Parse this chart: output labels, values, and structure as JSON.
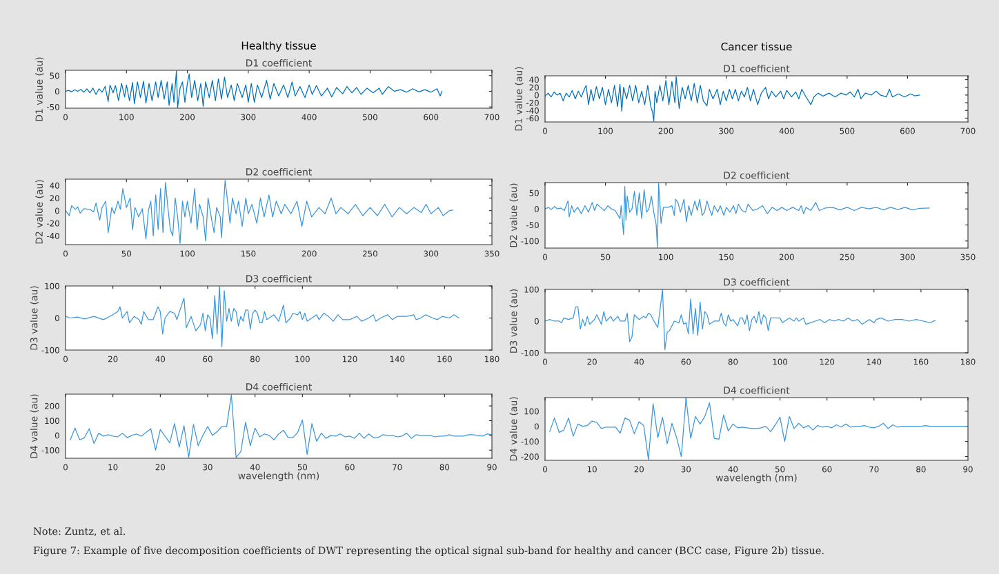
{
  "chart_data": [
    {
      "type": "line",
      "title": "Healthy tissue",
      "subtitle": "D1 coefficient",
      "ylabel": "D1 value (au)",
      "xlim": [
        0,
        700
      ],
      "xticks": [
        0,
        100,
        200,
        300,
        400,
        500,
        600,
        700
      ],
      "ylim": [
        -54,
        67
      ],
      "yticks": [
        -50,
        0,
        50
      ],
      "grid": false,
      "series": [
        {
          "color": "#0072bd",
          "x": [
            0,
            5,
            10,
            15,
            20,
            25,
            30,
            35,
            40,
            45,
            50,
            55,
            60,
            65,
            70,
            73,
            78,
            82,
            87,
            92,
            97,
            100,
            105,
            110,
            113,
            118,
            123,
            128,
            132,
            137,
            142,
            148,
            152,
            157,
            162,
            167,
            170,
            175,
            178,
            182,
            184,
            188,
            192,
            196,
            200,
            203,
            207,
            212,
            217,
            222,
            226,
            230,
            236,
            241,
            246,
            251,
            256,
            261,
            266,
            272,
            277,
            282,
            290,
            296,
            300,
            305,
            310,
            315,
            322,
            330,
            336,
            342,
            350,
            358,
            365,
            372,
            377,
            385,
            393,
            400,
            405,
            412,
            420,
            430,
            437,
            445,
            455,
            462,
            470,
            478,
            485,
            495,
            505,
            515,
            520,
            530,
            540,
            550,
            560,
            570,
            580,
            590,
            600,
            610,
            615,
            618
          ],
          "values": [
            0,
            3,
            -2,
            5,
            0,
            6,
            -3,
            8,
            -5,
            10,
            -10,
            8,
            -3,
            15,
            -33,
            20,
            -5,
            18,
            -30,
            25,
            -18,
            20,
            -30,
            28,
            -40,
            30,
            -20,
            32,
            -38,
            25,
            -30,
            30,
            -20,
            35,
            -25,
            30,
            -45,
            25,
            -35,
            65,
            -52,
            10,
            30,
            -35,
            25,
            55,
            -20,
            35,
            -30,
            25,
            -48,
            30,
            -20,
            35,
            -30,
            40,
            -25,
            45,
            -20,
            20,
            -30,
            25,
            -20,
            20,
            -35,
            25,
            -35,
            20,
            -20,
            35,
            -25,
            25,
            -15,
            20,
            -20,
            30,
            -15,
            15,
            -20,
            20,
            -10,
            18,
            -15,
            10,
            -18,
            12,
            -8,
            15,
            -5,
            12,
            -10,
            10,
            -5,
            10,
            -10,
            15,
            0,
            5,
            -3,
            8,
            -2,
            5,
            -3,
            8,
            -15,
            0
          ]
        }
      ]
    },
    {
      "type": "line",
      "title": "Cancer tissue",
      "subtitle": "D1 coefficient",
      "ylabel": "D1 value (au)",
      "xlim": [
        0,
        700
      ],
      "xticks": [
        0,
        100,
        200,
        300,
        400,
        500,
        600,
        700
      ],
      "ylim": [
        -70,
        50
      ],
      "yticks": [
        -60,
        -40,
        -20,
        0,
        20,
        40
      ],
      "grid": false,
      "series": [
        {
          "color": "#0072bd",
          "x": [
            0,
            5,
            10,
            15,
            20,
            25,
            30,
            35,
            40,
            45,
            50,
            55,
            60,
            65,
            68,
            72,
            76,
            80,
            85,
            90,
            95,
            100,
            105,
            110,
            115,
            120,
            124,
            127,
            130,
            135,
            140,
            145,
            150,
            155,
            160,
            165,
            170,
            175,
            178,
            180,
            182,
            185,
            190,
            195,
            200,
            205,
            210,
            215,
            217,
            220,
            222,
            227,
            232,
            237,
            242,
            247,
            252,
            257,
            262,
            268,
            272,
            278,
            285,
            290,
            295,
            300,
            305,
            310,
            315,
            320,
            325,
            330,
            335,
            340,
            345,
            352,
            358,
            365,
            370,
            375,
            382,
            390,
            395,
            400,
            408,
            415,
            420,
            425,
            432,
            440,
            445,
            452,
            460,
            470,
            480,
            490,
            498,
            505,
            512,
            518,
            523,
            530,
            540,
            548,
            555,
            565,
            570,
            575,
            585,
            595,
            605,
            612,
            620
          ],
          "values": [
            -3,
            5,
            -5,
            8,
            0,
            5,
            -15,
            5,
            -5,
            12,
            -10,
            10,
            -5,
            15,
            25,
            -25,
            15,
            -15,
            22,
            -10,
            20,
            -25,
            15,
            -20,
            25,
            -30,
            28,
            -42,
            20,
            -10,
            25,
            -15,
            25,
            -20,
            10,
            -25,
            25,
            -30,
            -45,
            -68,
            10,
            -20,
            25,
            -15,
            38,
            -25,
            35,
            -20,
            48,
            0,
            -35,
            20,
            -10,
            25,
            -15,
            30,
            -20,
            25,
            -15,
            -28,
            15,
            -10,
            15,
            -25,
            10,
            -15,
            15,
            -10,
            15,
            -15,
            10,
            -5,
            20,
            -15,
            15,
            -25,
            5,
            20,
            -10,
            10,
            -5,
            10,
            -10,
            12,
            -5,
            8,
            -10,
            15,
            -5,
            -25,
            -5,
            5,
            -3,
            5,
            -5,
            5,
            0,
            8,
            -5,
            15,
            -10,
            5,
            0,
            10,
            0,
            -5,
            15,
            -5,
            3,
            -5,
            3,
            -2,
            0
          ]
        }
      ]
    },
    {
      "type": "line",
      "title": "D2 coefficient",
      "ylabel": "D2 value (au)",
      "xlim": [
        0,
        350
      ],
      "xticks": [
        0,
        50,
        100,
        150,
        200,
        250,
        300,
        350
      ],
      "ylim": [
        -54,
        50
      ],
      "yticks": [
        -40,
        -20,
        0,
        20,
        40
      ],
      "grid": false,
      "series": [
        {
          "color": "#3a96dd",
          "x": [
            0,
            3,
            5,
            8,
            10,
            12,
            15,
            20,
            23,
            25,
            28,
            30,
            33,
            35,
            38,
            40,
            43,
            45,
            47,
            50,
            53,
            55,
            57,
            60,
            63,
            66,
            68,
            70,
            72,
            74,
            76,
            78,
            80,
            82,
            84,
            86,
            88,
            90,
            92,
            94,
            96,
            98,
            100,
            103,
            106,
            108,
            110,
            113,
            115,
            117,
            120,
            122,
            124,
            127,
            128,
            131,
            133,
            135,
            137,
            140,
            142,
            145,
            148,
            150,
            153,
            157,
            160,
            163,
            167,
            170,
            173,
            177,
            180,
            185,
            190,
            194,
            198,
            202,
            208,
            213,
            218,
            222,
            226,
            232,
            238,
            244,
            250,
            256,
            262,
            268,
            274,
            280,
            286,
            292,
            296,
            300,
            306,
            310,
            315,
            318
          ],
          "values": [
            0,
            -8,
            8,
            2,
            6,
            -4,
            3,
            2,
            -2,
            12,
            -15,
            5,
            15,
            -35,
            5,
            -5,
            15,
            2,
            35,
            5,
            20,
            -30,
            5,
            -10,
            3,
            -45,
            0,
            15,
            -40,
            25,
            -30,
            35,
            -35,
            45,
            5,
            -30,
            -40,
            20,
            -10,
            -52,
            15,
            -10,
            15,
            -20,
            35,
            -30,
            10,
            -10,
            -48,
            20,
            -15,
            -35,
            5,
            -10,
            -43,
            48,
            15,
            -20,
            20,
            -5,
            15,
            -25,
            20,
            -5,
            10,
            -20,
            20,
            -10,
            25,
            -10,
            15,
            -5,
            10,
            -5,
            15,
            -25,
            15,
            -10,
            5,
            -5,
            20,
            -5,
            5,
            -5,
            10,
            -8,
            5,
            -8,
            10,
            -10,
            5,
            -5,
            5,
            -3,
            10,
            -5,
            5,
            -8,
            0,
            1
          ]
        }
      ]
    },
    {
      "type": "line",
      "title": "D2 coefficient",
      "ylabel": "D2 value (au)",
      "xlim": [
        0,
        350
      ],
      "xticks": [
        0,
        50,
        100,
        150,
        200,
        250,
        300,
        350
      ],
      "ylim": [
        -122,
        82
      ],
      "yticks": [
        -100,
        -50,
        0,
        50
      ],
      "grid": false,
      "series": [
        {
          "color": "#3a96dd",
          "x": [
            0,
            3,
            5,
            8,
            10,
            13,
            16,
            19,
            20,
            22,
            24,
            27,
            30,
            33,
            36,
            39,
            41,
            43,
            46,
            49,
            52,
            55,
            58,
            62,
            63,
            65,
            66,
            67,
            68,
            70,
            72,
            74,
            76,
            78,
            80,
            82,
            84,
            86,
            88,
            90,
            92,
            93,
            94,
            95,
            96,
            98,
            102,
            105,
            107,
            108,
            110,
            112,
            115,
            117,
            119,
            121,
            124,
            126,
            128,
            130,
            132,
            134,
            136,
            138,
            140,
            143,
            145,
            148,
            150,
            153,
            156,
            158,
            160,
            163,
            166,
            168,
            172,
            176,
            180,
            184,
            188,
            192,
            196,
            200,
            205,
            210,
            212,
            214,
            216,
            220,
            224,
            227,
            232,
            238,
            244,
            250,
            256,
            262,
            268,
            274,
            280,
            286,
            292,
            298,
            304,
            310,
            318
          ],
          "values": [
            0,
            5,
            -2,
            8,
            0,
            3,
            -5,
            25,
            -25,
            10,
            -10,
            5,
            -15,
            10,
            -10,
            20,
            -5,
            15,
            5,
            -5,
            10,
            0,
            -5,
            -30,
            10,
            -80,
            70,
            -35,
            40,
            -10,
            0,
            55,
            -20,
            50,
            -30,
            60,
            -10,
            0,
            40,
            -10,
            -50,
            -120,
            80,
            20,
            -45,
            5,
            5,
            10,
            -20,
            30,
            20,
            -10,
            30,
            -40,
            10,
            -20,
            25,
            -5,
            30,
            -20,
            -10,
            25,
            0,
            -20,
            10,
            -10,
            10,
            -20,
            5,
            -10,
            10,
            -15,
            15,
            -5,
            -10,
            15,
            -5,
            0,
            10,
            -15,
            5,
            -5,
            5,
            -5,
            5,
            -5,
            10,
            -15,
            5,
            -5,
            20,
            -5,
            3,
            5,
            -3,
            5,
            -5,
            5,
            0,
            5,
            -3,
            5,
            -2,
            5,
            -3,
            2,
            3
          ]
        }
      ]
    },
    {
      "type": "line",
      "title": "D3 coefficient",
      "ylabel": "D3 value (au)",
      "xlim": [
        0,
        180
      ],
      "xticks": [
        0,
        20,
        40,
        60,
        80,
        100,
        120,
        140,
        160,
        180
      ],
      "ylim": [
        -100,
        100
      ],
      "yticks": [
        -100,
        0,
        100
      ],
      "grid": false,
      "series": [
        {
          "color": "#3a96dd",
          "x": [
            0,
            2,
            5,
            8,
            12,
            16,
            18,
            21,
            22,
            23,
            24,
            26,
            27,
            29,
            31,
            32,
            33,
            35,
            37,
            39,
            40,
            41,
            42,
            44,
            46,
            47,
            49,
            50,
            51,
            53,
            55,
            57,
            58,
            59,
            60,
            61,
            62,
            63,
            64,
            65,
            66,
            67,
            68,
            69,
            70,
            71,
            72,
            73,
            74,
            75,
            76,
            77,
            78,
            79,
            80,
            81,
            82,
            83,
            84,
            85,
            88,
            90,
            92,
            93,
            95,
            96,
            98,
            99,
            100,
            101,
            102,
            104,
            106,
            107,
            109,
            111,
            113,
            115,
            117,
            120,
            123,
            125,
            128,
            130,
            131,
            133,
            136,
            138,
            140,
            144,
            147,
            148,
            150,
            152,
            155,
            157,
            159,
            162,
            164,
            166
          ],
          "values": [
            5,
            0,
            3,
            -3,
            5,
            -5,
            2,
            15,
            20,
            35,
            0,
            20,
            -15,
            5,
            -5,
            -20,
            20,
            -5,
            -5,
            35,
            20,
            -50,
            0,
            20,
            15,
            -5,
            40,
            62,
            -30,
            5,
            -40,
            -20,
            15,
            -40,
            10,
            0,
            -65,
            70,
            -50,
            100,
            -90,
            85,
            -10,
            30,
            -10,
            30,
            20,
            -25,
            5,
            -10,
            25,
            25,
            -35,
            15,
            25,
            15,
            -15,
            -15,
            20,
            -5,
            10,
            -10,
            40,
            -15,
            0,
            15,
            10,
            20,
            -5,
            15,
            -10,
            0,
            10,
            -5,
            15,
            5,
            -10,
            10,
            -5,
            -5,
            5,
            -10,
            0,
            10,
            -10,
            0,
            10,
            -5,
            5,
            5,
            10,
            -5,
            0,
            10,
            0,
            -5,
            5,
            0,
            10,
            0
          ]
        }
      ]
    },
    {
      "type": "line",
      "title": "D3 coefficient",
      "ylabel": "D3 value (au)",
      "xlim": [
        0,
        180
      ],
      "xticks": [
        0,
        20,
        40,
        60,
        80,
        100,
        120,
        140,
        160,
        180
      ],
      "ylim": [
        -100,
        100
      ],
      "yticks": [
        -100,
        0,
        100
      ],
      "grid": false,
      "series": [
        {
          "color": "#3a96dd",
          "x": [
            0,
            2,
            4,
            6,
            7,
            8,
            10,
            12,
            13,
            14,
            15,
            16,
            17,
            18,
            19,
            21,
            22,
            24,
            25,
            26,
            28,
            29,
            31,
            32,
            34,
            35,
            36,
            37,
            38,
            40,
            42,
            43,
            44,
            45,
            46,
            48,
            50,
            51,
            52,
            53,
            55,
            57,
            58,
            59,
            60,
            61,
            62,
            63,
            64,
            65,
            66,
            67,
            68,
            69,
            70,
            72,
            74,
            75,
            76,
            77,
            78,
            79,
            80,
            82,
            83,
            84,
            85,
            86,
            87,
            88,
            89,
            90,
            91,
            92,
            93,
            94,
            95,
            96,
            98,
            100,
            101,
            104,
            106,
            107,
            108,
            110,
            111,
            113,
            115,
            117,
            119,
            121,
            123,
            125,
            127,
            129,
            131,
            133,
            135,
            137,
            138,
            140,
            141,
            143,
            146,
            149,
            152,
            155,
            158,
            161,
            164,
            166
          ],
          "values": [
            0,
            5,
            0,
            0,
            -5,
            10,
            5,
            10,
            45,
            45,
            -25,
            5,
            -15,
            15,
            -10,
            5,
            20,
            -10,
            30,
            0,
            15,
            0,
            15,
            0,
            0,
            25,
            -65,
            -50,
            20,
            5,
            15,
            10,
            25,
            20,
            5,
            -20,
            100,
            -90,
            -35,
            -30,
            0,
            -5,
            20,
            -10,
            -5,
            -40,
            70,
            -40,
            40,
            -45,
            60,
            -25,
            30,
            20,
            -10,
            0,
            0,
            25,
            -5,
            -15,
            20,
            0,
            5,
            -15,
            10,
            10,
            -10,
            20,
            -30,
            5,
            15,
            -5,
            30,
            -10,
            20,
            10,
            -30,
            10,
            10,
            10,
            -5,
            10,
            0,
            10,
            0,
            10,
            -10,
            -5,
            0,
            5,
            -5,
            5,
            0,
            5,
            0,
            10,
            0,
            5,
            -10,
            0,
            5,
            -5,
            5,
            10,
            0,
            5,
            5,
            0,
            5,
            0,
            -5,
            2
          ]
        }
      ]
    },
    {
      "type": "line",
      "title": "D4 coefficient",
      "xlabel": "wavelength (nm)",
      "ylabel": "D4 value (au)",
      "xlim": [
        0,
        90
      ],
      "xticks": [
        0,
        10,
        20,
        30,
        40,
        50,
        60,
        70,
        80,
        90
      ],
      "ylim": [
        -155,
        280
      ],
      "yticks": [
        -100,
        0,
        100,
        200
      ],
      "grid": false,
      "series": [
        {
          "color": "#3a96dd",
          "x": [
            1,
            2,
            3,
            4,
            5,
            6,
            7,
            8,
            9,
            10,
            11,
            12,
            13,
            14,
            15,
            16,
            17,
            18,
            19,
            20,
            21,
            22,
            23,
            24,
            25,
            26,
            27,
            28,
            29,
            30,
            31,
            32,
            33,
            34,
            35,
            36,
            37,
            38,
            39,
            40,
            41,
            42,
            43,
            44,
            45,
            46,
            47,
            48,
            49,
            50,
            51,
            52,
            53,
            54,
            55,
            56,
            57,
            58,
            59,
            60,
            61,
            62,
            63,
            64,
            65,
            66,
            67,
            68,
            69,
            70,
            71,
            72,
            73,
            74,
            75,
            76,
            77,
            78,
            79,
            80,
            81,
            82,
            83,
            84,
            85,
            86,
            87,
            88,
            89,
            90
          ],
          "values": [
            -30,
            50,
            -30,
            -15,
            45,
            -55,
            15,
            -5,
            5,
            -5,
            -10,
            15,
            -15,
            0,
            10,
            -5,
            20,
            45,
            -100,
            40,
            -5,
            -50,
            80,
            -80,
            65,
            -150,
            75,
            -70,
            0,
            60,
            0,
            25,
            60,
            60,
            275,
            -150,
            -110,
            90,
            -70,
            50,
            -10,
            10,
            0,
            -30,
            10,
            35,
            -15,
            -15,
            20,
            105,
            -130,
            80,
            -40,
            15,
            -20,
            0,
            -5,
            10,
            -10,
            -5,
            -20,
            15,
            -20,
            10,
            -15,
            -15,
            5,
            0,
            0,
            -10,
            -5,
            15,
            -20,
            5,
            0,
            0,
            0,
            -10,
            -5,
            -5,
            5,
            -5,
            -5,
            -5,
            5,
            5,
            0,
            -5,
            10,
            5
          ]
        }
      ]
    },
    {
      "type": "line",
      "title": "D4 coefficient",
      "xlabel": "wavelength (nm)",
      "ylabel": "D4 value (au)",
      "xlim": [
        0,
        90
      ],
      "xticks": [
        0,
        10,
        20,
        30,
        40,
        50,
        60,
        70,
        80,
        90
      ],
      "ylim": [
        -225,
        190
      ],
      "yticks": [
        -200,
        -100,
        0,
        100
      ],
      "grid": false,
      "annotations": [
        "Note: Zuntz, et al.",
        "Figure 7: Example of five decomposition coefficients of DWT representing the optical signal sub-band for healthy and cancer (BCC case, Figure 2b) tissue."
      ],
      "series": [
        {
          "color": "#3a96dd",
          "x": [
            1,
            2,
            3,
            4,
            5,
            6,
            7,
            8,
            9,
            10,
            11,
            12,
            13,
            14,
            15,
            16,
            17,
            18,
            19,
            20,
            21,
            22,
            23,
            24,
            25,
            26,
            27,
            28,
            29,
            30,
            31,
            32,
            33,
            34,
            35,
            36,
            37,
            38,
            39,
            40,
            41,
            42,
            43,
            44,
            45,
            46,
            47,
            48,
            49,
            50,
            51,
            52,
            53,
            54,
            55,
            56,
            57,
            58,
            59,
            60,
            61,
            62,
            63,
            64,
            65,
            66,
            67,
            68,
            69,
            70,
            71,
            72,
            73,
            74,
            75,
            76,
            78,
            80,
            81,
            82,
            84,
            86,
            88,
            90
          ],
          "values": [
            -35,
            55,
            -40,
            -25,
            55,
            -65,
            15,
            0,
            5,
            35,
            25,
            -15,
            -5,
            -5,
            -5,
            -45,
            55,
            40,
            -50,
            30,
            5,
            -220,
            150,
            -75,
            60,
            -115,
            20,
            -75,
            -200,
            185,
            -80,
            65,
            15,
            65,
            155,
            -80,
            -85,
            75,
            -30,
            15,
            -10,
            -5,
            -10,
            -15,
            -15,
            -10,
            0,
            -35,
            10,
            60,
            -100,
            65,
            -15,
            20,
            -10,
            5,
            -25,
            5,
            -5,
            0,
            -10,
            10,
            -5,
            15,
            -5,
            0,
            0,
            5,
            -5,
            -10,
            0,
            20,
            -15,
            10,
            -5,
            0,
            0,
            0,
            5,
            0,
            0,
            0,
            0,
            0
          ]
        }
      ]
    }
  ]
}
